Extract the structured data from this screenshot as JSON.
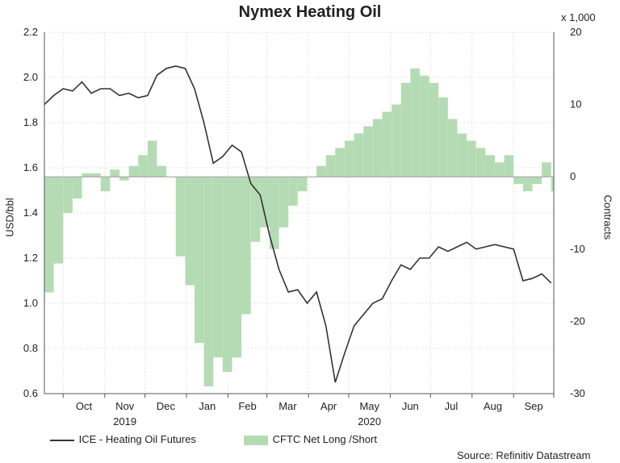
{
  "chart_data": {
    "type": "line",
    "title": "Nymex Heating Oil",
    "ylabel": "USD/bbl",
    "y2label": "Contracts",
    "y2_multiplier_label": "x 1,000",
    "ylim": [
      0.6,
      2.2
    ],
    "y2lim": [
      -30,
      20
    ],
    "yticks": [
      "2.2",
      "2.0",
      "1.8",
      "1.6",
      "1.4",
      "1.2",
      "1.0",
      "0.8",
      "0.6"
    ],
    "y2ticks": [
      "20",
      "10",
      "0",
      "-10",
      "-20",
      "-30"
    ],
    "xticks": [
      "Oct",
      "Nov",
      "Dec",
      "Jan",
      "Feb",
      "Mar",
      "Apr",
      "May",
      "Jun",
      "Jul",
      "Aug",
      "Sep"
    ],
    "year_labels": [
      "2019",
      "2020"
    ],
    "grid": true,
    "source": "Source: Refinitiv Datastream",
    "series": [
      {
        "name": "ICE - Heating Oil Futures",
        "color": "#333333",
        "axis": "left",
        "x": [
          "2019-09-17",
          "2019-09-24",
          "2019-10-01",
          "2019-10-08",
          "2019-10-15",
          "2019-10-22",
          "2019-10-29",
          "2019-11-05",
          "2019-11-12",
          "2019-11-19",
          "2019-11-26",
          "2019-12-03",
          "2019-12-10",
          "2019-12-17",
          "2019-12-24",
          "2019-12-31",
          "2020-01-07",
          "2020-01-14",
          "2020-01-21",
          "2020-01-28",
          "2020-02-04",
          "2020-02-11",
          "2020-02-18",
          "2020-02-25",
          "2020-03-03",
          "2020-03-10",
          "2020-03-17",
          "2020-03-24",
          "2020-03-31",
          "2020-04-07",
          "2020-04-14",
          "2020-04-21",
          "2020-04-28",
          "2020-05-05",
          "2020-05-12",
          "2020-05-19",
          "2020-05-26",
          "2020-06-02",
          "2020-06-09",
          "2020-06-16",
          "2020-06-23",
          "2020-06-30",
          "2020-07-07",
          "2020-07-14",
          "2020-07-21",
          "2020-07-28",
          "2020-08-04",
          "2020-08-11",
          "2020-08-18",
          "2020-08-25",
          "2020-09-01",
          "2020-09-08",
          "2020-09-15",
          "2020-09-22",
          "2020-09-29"
        ],
        "values": [
          1.88,
          1.92,
          1.95,
          1.94,
          1.98,
          1.93,
          1.95,
          1.95,
          1.92,
          1.93,
          1.91,
          1.92,
          2.01,
          2.04,
          2.05,
          2.04,
          1.95,
          1.8,
          1.62,
          1.65,
          1.7,
          1.67,
          1.53,
          1.48,
          1.3,
          1.15,
          1.05,
          1.06,
          1.0,
          1.05,
          0.9,
          0.65,
          0.78,
          0.9,
          0.95,
          1.0,
          1.02,
          1.1,
          1.17,
          1.15,
          1.2,
          1.2,
          1.25,
          1.23,
          1.25,
          1.27,
          1.24,
          1.25,
          1.26,
          1.25,
          1.24,
          1.1,
          1.11,
          1.13,
          1.09
        ]
      },
      {
        "name": "CFTC Net Long /Short",
        "color": "#b5dbb5",
        "axis": "right",
        "type": "area",
        "x": [
          "2019-09-17",
          "2019-09-24",
          "2019-10-01",
          "2019-10-08",
          "2019-10-15",
          "2019-10-22",
          "2019-10-29",
          "2019-11-05",
          "2019-11-12",
          "2019-11-19",
          "2019-11-26",
          "2019-12-03",
          "2019-12-10",
          "2019-12-17",
          "2019-12-24",
          "2019-12-31",
          "2020-01-07",
          "2020-01-14",
          "2020-01-21",
          "2020-01-28",
          "2020-02-04",
          "2020-02-11",
          "2020-02-18",
          "2020-02-25",
          "2020-03-03",
          "2020-03-10",
          "2020-03-17",
          "2020-03-24",
          "2020-03-31",
          "2020-04-07",
          "2020-04-14",
          "2020-04-21",
          "2020-04-28",
          "2020-05-05",
          "2020-05-12",
          "2020-05-19",
          "2020-05-26",
          "2020-06-02",
          "2020-06-09",
          "2020-06-16",
          "2020-06-23",
          "2020-06-30",
          "2020-07-07",
          "2020-07-14",
          "2020-07-21",
          "2020-07-28",
          "2020-08-04",
          "2020-08-11",
          "2020-08-18",
          "2020-08-25",
          "2020-09-01",
          "2020-09-08",
          "2020-09-15",
          "2020-09-22",
          "2020-09-29"
        ],
        "values": [
          -16,
          -12,
          -5,
          -3,
          0.5,
          0.5,
          -2,
          1,
          -0.5,
          1.5,
          3,
          5,
          1.5,
          0,
          -11,
          -15,
          -23,
          -29,
          -25,
          -27,
          -25,
          -19,
          -9,
          -7,
          -10,
          -7,
          -4,
          -2,
          0,
          1.5,
          3,
          4,
          5,
          6,
          7,
          8,
          9,
          10,
          13,
          15,
          14,
          13,
          11,
          8,
          6,
          5,
          4,
          3,
          2,
          3,
          -1,
          -2,
          -1,
          2,
          -2
        ]
      }
    ]
  },
  "legend": {
    "line_label": "ICE - Heating Oil Futures",
    "area_label": "CFTC Net Long /Short"
  }
}
